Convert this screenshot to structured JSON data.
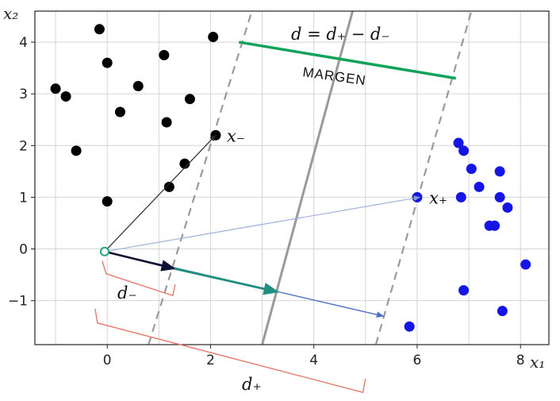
{
  "chart_data": {
    "type": "scatter",
    "title": "",
    "xlabel": "x₁",
    "ylabel": "x₂",
    "xlim": [
      -1.4,
      8.55
    ],
    "ylim": [
      -1.85,
      4.6
    ],
    "xticks": [
      0,
      2,
      4,
      6,
      8
    ],
    "yticks": [
      -1,
      0,
      1,
      2,
      3,
      4
    ],
    "grid": true,
    "series": [
      {
        "color": "#000000",
        "points": [
          [
            -0.15,
            4.25
          ],
          [
            2.05,
            4.1
          ],
          [
            0,
            3.6
          ],
          [
            1.1,
            3.75
          ],
          [
            0.6,
            3.15
          ],
          [
            -1.0,
            3.1
          ],
          [
            -0.8,
            2.95
          ],
          [
            0.25,
            2.65
          ],
          [
            1.6,
            2.9
          ],
          [
            1.15,
            2.45
          ],
          [
            -0.6,
            1.9
          ],
          [
            2.1,
            2.2
          ],
          [
            1.5,
            1.65
          ],
          [
            1.2,
            1.2
          ],
          [
            0,
            0.92
          ]
        ]
      },
      {
        "color": "#1515e6",
        "points": [
          [
            6.8,
            2.05
          ],
          [
            6.9,
            1.9
          ],
          [
            7.05,
            1.55
          ],
          [
            7.6,
            1.5
          ],
          [
            7.2,
            1.2
          ],
          [
            6.0,
            1.0
          ],
          [
            6.85,
            1.0
          ],
          [
            7.6,
            1.0
          ],
          [
            7.75,
            0.8
          ],
          [
            7.4,
            0.45
          ],
          [
            7.5,
            0.45
          ],
          [
            8.1,
            -0.3
          ],
          [
            6.9,
            -0.8
          ],
          [
            7.65,
            -1.2
          ],
          [
            5.85,
            -1.5
          ]
        ]
      }
    ],
    "decision_boundary": {
      "from": [
        3.0,
        -1.85
      ],
      "to": [
        4.75,
        4.6
      ],
      "color": "#9a9a9a"
    },
    "margin_boundaries": [
      {
        "from": [
          0.8,
          -1.85
        ],
        "to": [
          2.8,
          4.6
        ],
        "color": "#9a9a9a",
        "dashed": true
      },
      {
        "from": [
          5.2,
          -1.85
        ],
        "to": [
          7.05,
          4.6
        ],
        "color": "#9a9a9a",
        "dashed": true
      }
    ],
    "origin_point": [
      -0.05,
      -0.05
    ],
    "vectors": [
      {
        "from": [
          -0.05,
          -0.05
        ],
        "to": [
          2.1,
          2.2
        ],
        "color": "#2b2b2b",
        "label": "x₋"
      },
      {
        "from": [
          -0.05,
          -0.05
        ],
        "to": [
          6.05,
          1.0
        ],
        "color": "#9cb3d9",
        "label": "x₊"
      },
      {
        "from": [
          -0.05,
          -0.05
        ],
        "to": [
          5.35,
          -1.3
        ],
        "color": "#4f6fc6"
      },
      {
        "from": [
          -0.05,
          -0.05
        ],
        "to": [
          1.3,
          -0.38
        ],
        "color": "#111133"
      },
      {
        "from": [
          1.3,
          -0.38
        ],
        "to": [
          3.3,
          -0.83
        ],
        "color": "#1f8f7f"
      }
    ],
    "margin_line": {
      "from": [
        2.55,
        4.0
      ],
      "to": [
        6.75,
        3.3
      ],
      "color": "#12a35a"
    },
    "annotations": {
      "formula": "d = d₊ − d₋",
      "margin_word": "MARGEN",
      "x_minus": "x₋",
      "x_plus": "x₊",
      "d_minus": "d₋",
      "d_plus": "d₊"
    },
    "brace_color": "#e5796b"
  }
}
